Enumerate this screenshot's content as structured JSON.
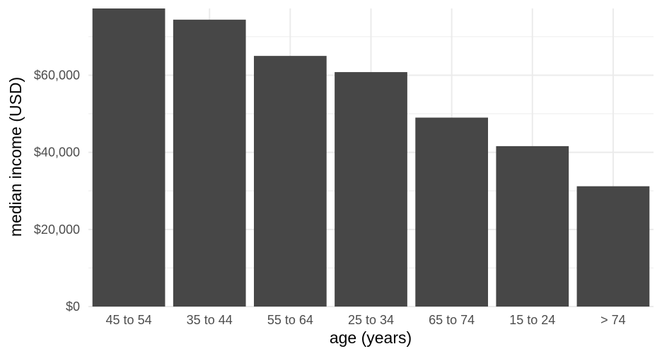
{
  "chart_data": {
    "type": "bar",
    "title": "",
    "xlabel": "age (years)",
    "ylabel": "median income (USD)",
    "categories": [
      "45 to 54",
      "35 to 44",
      "55 to 64",
      "25 to 34",
      "65 to 74",
      "15 to 24",
      "> 74"
    ],
    "values": [
      77300,
      74400,
      65000,
      60800,
      49000,
      41600,
      31200
    ],
    "ylim": [
      0,
      77300
    ],
    "yticks": [
      0,
      20000,
      40000,
      60000
    ],
    "ytick_labels": [
      "$0",
      "$20,000",
      "$40,000",
      "$60,000"
    ],
    "grid": true,
    "legend": "none",
    "bar_color": "#474747"
  }
}
